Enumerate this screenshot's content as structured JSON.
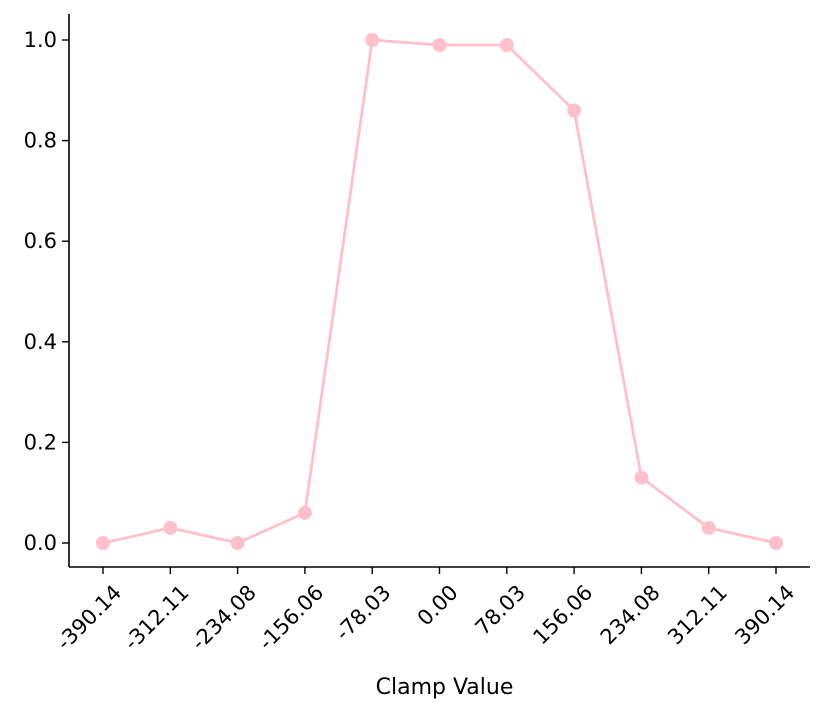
{
  "chart_data": {
    "type": "line",
    "title": "",
    "xlabel": "Clamp Value",
    "ylabel": "",
    "categories": [
      "-390.14",
      "-312.11",
      "-234.08",
      "-156.06",
      "-78.03",
      "0.00",
      "78.03",
      "156.06",
      "234.08",
      "312.11",
      "390.14"
    ],
    "series": [
      {
        "values": [
          0.0,
          0.03,
          0.0,
          0.06,
          1.0,
          0.99,
          0.99,
          0.86,
          0.13,
          0.03,
          0.0
        ],
        "color": "#ffc0cb",
        "marker": "circle"
      }
    ],
    "yticks": [
      "0.0",
      "0.2",
      "0.4",
      "0.6",
      "0.8",
      "1.0"
    ],
    "ytick_values": [
      0.0,
      0.2,
      0.4,
      0.6,
      0.8,
      1.0
    ],
    "ylim": [
      -0.05,
      1.05
    ],
    "grid": false,
    "legend": "none",
    "spines": "left-bottom"
  }
}
